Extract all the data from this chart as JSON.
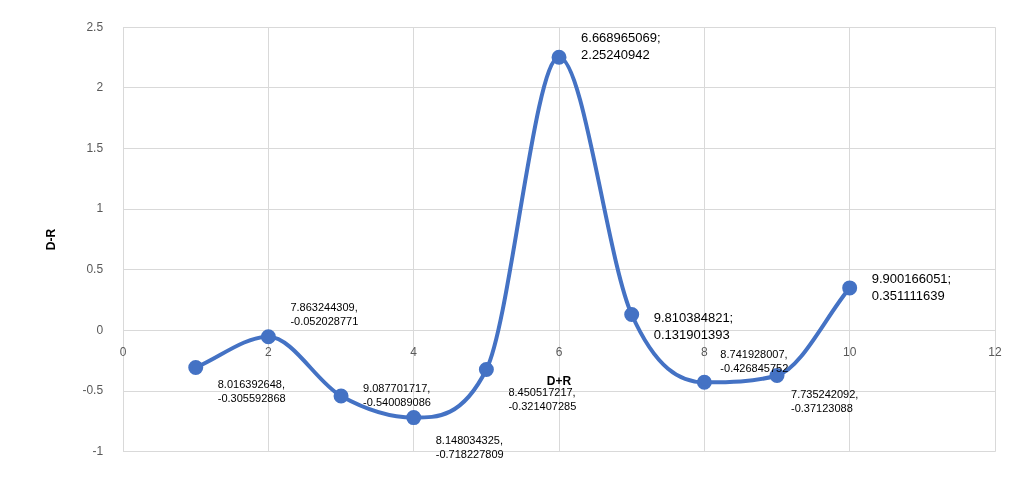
{
  "chart_data": {
    "type": "line",
    "xlabel": "D+R",
    "ylabel": "D-R",
    "x": [
      1,
      2,
      3,
      4,
      5,
      6,
      7,
      8,
      9,
      10
    ],
    "series": [
      {
        "color": "#4472c4",
        "values": [
          -0.305592868,
          -0.052028771,
          -0.540089086,
          -0.718227809,
          -0.321407285,
          2.25240942,
          0.131901393,
          -0.426845752,
          -0.37123088,
          0.351111639
        ],
        "value_labels": [
          "8.016392648,\n-0.305592868",
          "7.863244309,\n-0.052028771",
          "9.087701717,\n-0.540089086",
          "8.148034325,\n-0.718227809",
          "8.450517217,\n-0.321407285",
          "6.668965069;\n2.25240942",
          "9.810384821;\n0.131901393",
          "8.741928007,\n-0.426845752",
          "7.735242092,\n-0.37123088",
          "9.900166051;\n0.351111639"
        ]
      }
    ],
    "xlim": [
      0,
      12
    ],
    "xticks": [
      0,
      2,
      4,
      6,
      8,
      10,
      12
    ],
    "ylim": [
      -1,
      2.5
    ],
    "yticks": [
      -1,
      -0.5,
      0,
      0.5,
      1,
      1.5,
      2,
      2.5
    ],
    "grid": true,
    "legend": false,
    "marker": "circle",
    "line_style": "solid"
  }
}
